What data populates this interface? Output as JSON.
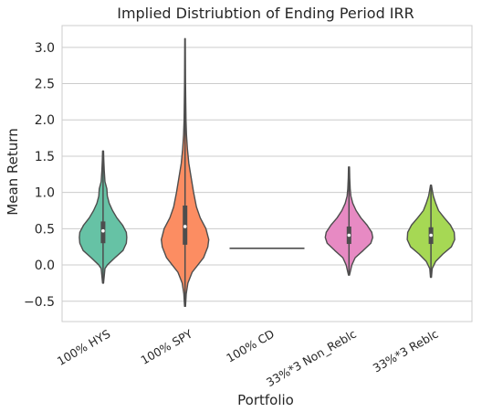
{
  "chart_data": {
    "type": "violin",
    "title": "Implied Distriubtion of Ending Period IRR",
    "xlabel": "Portfolio",
    "ylabel": "Mean Return",
    "ylim": [
      -0.78,
      3.3
    ],
    "yticks": [
      -0.5,
      0.0,
      0.5,
      1.0,
      1.5,
      2.0,
      2.5,
      3.0
    ],
    "ytick_labels": [
      "−0.5",
      "0.0",
      "0.5",
      "1.0",
      "1.5",
      "2.0",
      "2.5",
      "3.0"
    ],
    "grid": "horizontal",
    "categories": [
      "100% HYS",
      "100% SPY",
      "100% CD",
      "33%*3 Non_Reblc",
      "33%*3 Reblc"
    ],
    "series": [
      {
        "color": "#66c2a5",
        "min": -0.25,
        "max": 1.57,
        "q1": 0.3,
        "median": 0.47,
        "q3": 0.6,
        "density": [
          [
            -0.25,
            0.02
          ],
          [
            -0.05,
            0.08
          ],
          [
            0.0,
            0.18
          ],
          [
            0.1,
            0.5
          ],
          [
            0.2,
            0.84
          ],
          [
            0.3,
            0.98
          ],
          [
            0.38,
            1.0
          ],
          [
            0.45,
            0.98
          ],
          [
            0.55,
            0.82
          ],
          [
            0.65,
            0.58
          ],
          [
            0.75,
            0.4
          ],
          [
            0.85,
            0.26
          ],
          [
            0.95,
            0.18
          ],
          [
            1.05,
            0.16
          ],
          [
            1.15,
            0.08
          ],
          [
            1.3,
            0.05
          ],
          [
            1.45,
            0.03
          ],
          [
            1.57,
            0.02
          ]
        ]
      },
      {
        "color": "#fc8d62",
        "min": -0.57,
        "max": 3.12,
        "q1": 0.28,
        "median": 0.53,
        "q3": 0.82,
        "density": [
          [
            -0.57,
            0.02
          ],
          [
            -0.4,
            0.05
          ],
          [
            -0.25,
            0.12
          ],
          [
            -0.1,
            0.3
          ],
          [
            0.0,
            0.54
          ],
          [
            0.1,
            0.78
          ],
          [
            0.25,
            0.96
          ],
          [
            0.35,
            1.0
          ],
          [
            0.5,
            0.88
          ],
          [
            0.65,
            0.64
          ],
          [
            0.8,
            0.48
          ],
          [
            1.0,
            0.36
          ],
          [
            1.2,
            0.26
          ],
          [
            1.4,
            0.16
          ],
          [
            1.6,
            0.1
          ],
          [
            1.8,
            0.06
          ],
          [
            2.0,
            0.04
          ],
          [
            2.5,
            0.02
          ],
          [
            3.12,
            0.01
          ]
        ]
      },
      {
        "color": "#8da0cb",
        "value": 0.23
      },
      {
        "color": "#e78ac3",
        "min": -0.14,
        "max": 1.35,
        "q1": 0.29,
        "median": 0.41,
        "q3": 0.53,
        "density": [
          [
            -0.14,
            0.02
          ],
          [
            0.0,
            0.12
          ],
          [
            0.1,
            0.26
          ],
          [
            0.2,
            0.6
          ],
          [
            0.3,
            0.92
          ],
          [
            0.38,
            1.0
          ],
          [
            0.45,
            0.96
          ],
          [
            0.55,
            0.76
          ],
          [
            0.65,
            0.5
          ],
          [
            0.75,
            0.3
          ],
          [
            0.85,
            0.16
          ],
          [
            0.95,
            0.08
          ],
          [
            1.05,
            0.05
          ],
          [
            1.2,
            0.03
          ],
          [
            1.35,
            0.02
          ]
        ]
      },
      {
        "color": "#a6d854",
        "min": -0.17,
        "max": 1.1,
        "q1": 0.29,
        "median": 0.41,
        "q3": 0.52,
        "density": [
          [
            -0.17,
            0.02
          ],
          [
            -0.05,
            0.05
          ],
          [
            0.05,
            0.2
          ],
          [
            0.15,
            0.5
          ],
          [
            0.25,
            0.86
          ],
          [
            0.35,
            1.0
          ],
          [
            0.45,
            0.98
          ],
          [
            0.55,
            0.82
          ],
          [
            0.65,
            0.56
          ],
          [
            0.75,
            0.32
          ],
          [
            0.85,
            0.2
          ],
          [
            0.95,
            0.1
          ],
          [
            1.02,
            0.06
          ],
          [
            1.1,
            0.02
          ]
        ]
      }
    ]
  }
}
